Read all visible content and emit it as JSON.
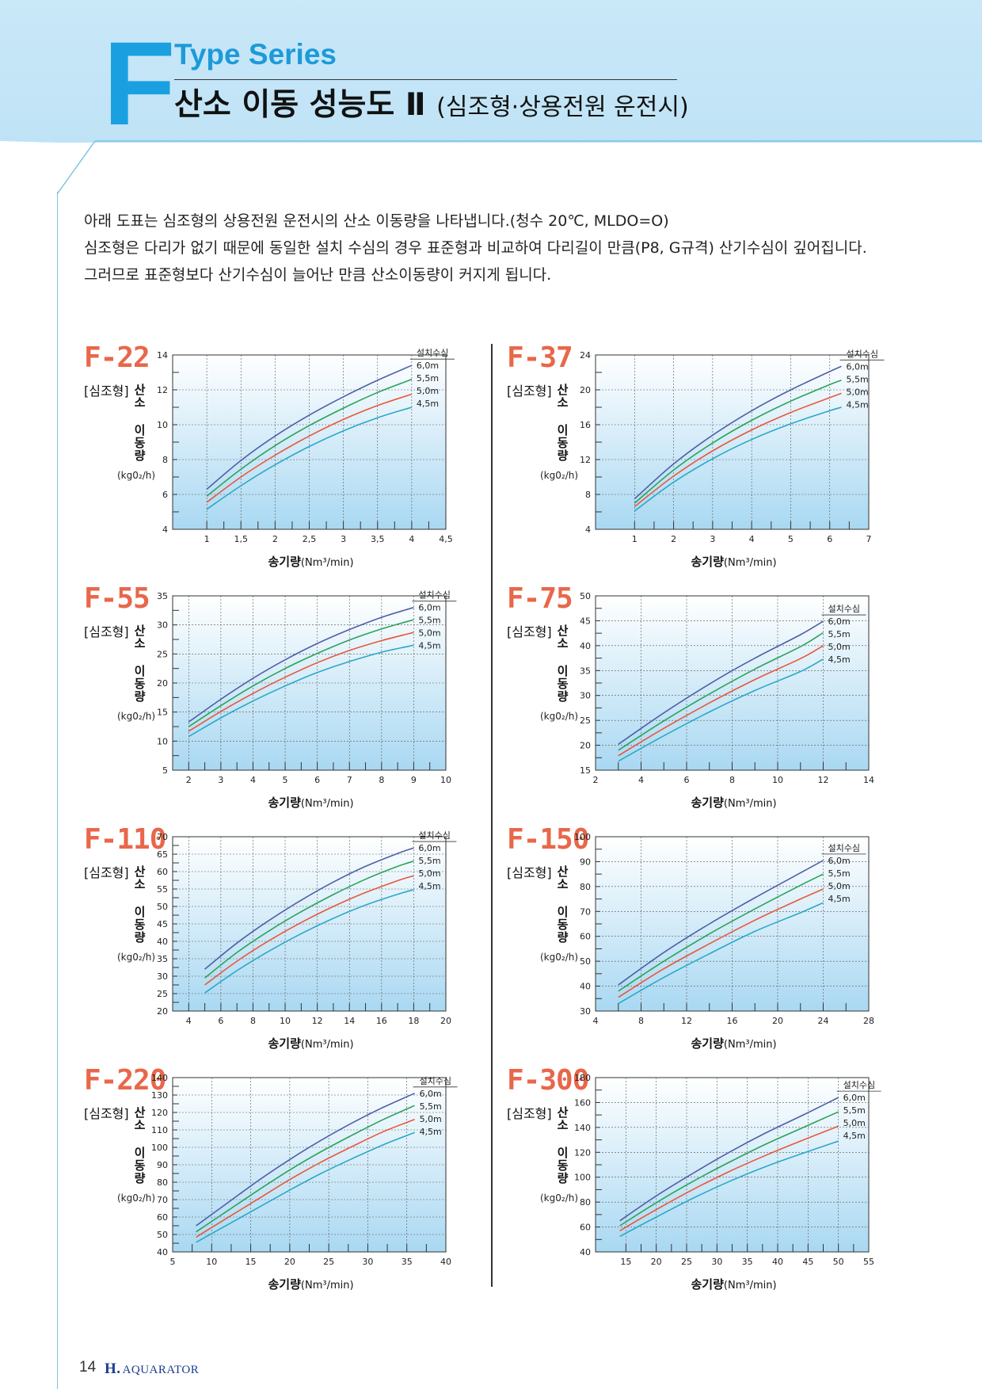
{
  "header": {
    "letter": "F",
    "series": "Type Series",
    "title": "산소 이동 성능도 Ⅱ",
    "subtitle": "(심조형·상용전원 운전시)"
  },
  "intro": [
    "아래 도표는 심조형의 상용전원 운전시의 산소 이동량을 나타냅니다.(청수 20℃, MLDO=O)",
    "심조형은 다리가 없기 때문에 동일한 설치 수심의 경우 표준형과 비교하여 다리길이 만큼(P8, G규격) 산기수심이 깊어집니다.",
    "그러므로 표준형보다 산기수심이 늘어난 만큼 산소이동량이 커지게 됩니다."
  ],
  "common": {
    "type_label": "[심조형]",
    "ylabel": "산소 이동량",
    "yunit": "(kg0₂/h)",
    "xlabel": "송기량",
    "xunit": "(Nm³/min)",
    "legend_title": "설치수심",
    "series_names": [
      "6,0m",
      "5,5m",
      "5,0m",
      "4,5m"
    ],
    "series_colors": [
      "#4f5fa8",
      "#2aa35a",
      "#e8583a",
      "#29a9c6"
    ]
  },
  "footer": {
    "page": "14",
    "brand_mark": "H.",
    "brand": "AQUARATOR"
  },
  "chart_data": [
    {
      "type": "line",
      "title": "F-22",
      "xlabel": "송기량(Nm³/min)",
      "ylabel": "산소 이동량",
      "xlim": [
        0.5,
        4.5
      ],
      "ylim": [
        4,
        14
      ],
      "grid": true,
      "legend": "top-right",
      "xticks": [
        "1",
        "1,5",
        "2",
        "2,5",
        "3",
        "3,5",
        "4",
        "4,5"
      ],
      "yticks": [
        "4",
        "6",
        "8",
        "10",
        "12",
        "14"
      ],
      "x": [
        1,
        1.5,
        2,
        2.5,
        3,
        3.5,
        4
      ],
      "series": [
        {
          "name": "6,0m",
          "values": [
            6.3,
            7.95,
            9.35,
            10.55,
            11.6,
            12.55,
            13.4
          ]
        },
        {
          "name": "5,5m",
          "values": [
            5.9,
            7.45,
            8.8,
            9.95,
            10.95,
            11.85,
            12.6
          ]
        },
        {
          "name": "5,0m",
          "values": [
            5.55,
            7.0,
            8.25,
            9.35,
            10.3,
            11.1,
            11.75
          ]
        },
        {
          "name": "4,5m",
          "values": [
            5.15,
            6.5,
            7.7,
            8.75,
            9.65,
            10.4,
            11.0
          ]
        }
      ]
    },
    {
      "type": "line",
      "title": "F-37",
      "xlabel": "송기량(Nm³/min)",
      "ylabel": "산소 이동량",
      "xlim": [
        0,
        7
      ],
      "ylim": [
        4,
        24
      ],
      "grid": true,
      "legend": "top-right",
      "xticks": [
        "1",
        "2",
        "3",
        "4",
        "5",
        "6",
        "7"
      ],
      "yticks": [
        "4",
        "8",
        "12",
        "16",
        "20",
        "24"
      ],
      "x": [
        1,
        2,
        3,
        4,
        5,
        6,
        6.3
      ],
      "series": [
        {
          "name": "6,0m",
          "values": [
            7.5,
            11.5,
            14.8,
            17.6,
            20.0,
            22.1,
            22.7
          ]
        },
        {
          "name": "5,5m",
          "values": [
            7.0,
            10.8,
            13.9,
            16.5,
            18.7,
            20.6,
            21.1
          ]
        },
        {
          "name": "5,0m",
          "values": [
            6.6,
            10.1,
            13.0,
            15.4,
            17.4,
            19.1,
            19.6
          ]
        },
        {
          "name": "4,5m",
          "values": [
            6.1,
            9.4,
            12.1,
            14.3,
            16.1,
            17.6,
            18.0
          ]
        }
      ]
    },
    {
      "type": "line",
      "title": "F-55",
      "xlabel": "송기량(Nm³/min)",
      "ylabel": "산소 이동량",
      "xlim": [
        1.5,
        10
      ],
      "ylim": [
        5,
        35
      ],
      "grid": true,
      "legend": "top-right",
      "xticks": [
        "2",
        "3",
        "4",
        "5",
        "6",
        "7",
        "8",
        "9",
        "10"
      ],
      "yticks": [
        "5",
        "10",
        "15",
        "20",
        "25",
        "30",
        "35"
      ],
      "x": [
        2,
        3,
        4,
        5,
        6,
        7,
        8,
        9
      ],
      "series": [
        {
          "name": "6,0m",
          "values": [
            13.3,
            17.2,
            20.8,
            24.0,
            26.8,
            29.2,
            31.3,
            33.0
          ]
        },
        {
          "name": "5,5m",
          "values": [
            12.5,
            16.1,
            19.5,
            22.5,
            25.1,
            27.4,
            29.3,
            30.9
          ]
        },
        {
          "name": "5,0m",
          "values": [
            11.7,
            15.1,
            18.2,
            21.0,
            23.5,
            25.6,
            27.3,
            28.7
          ]
        },
        {
          "name": "4,5m",
          "values": [
            10.8,
            14.0,
            16.9,
            19.5,
            21.8,
            23.7,
            25.3,
            26.5
          ]
        }
      ]
    },
    {
      "type": "line",
      "title": "F-75",
      "xlabel": "송기량(Nm³/min)",
      "ylabel": "산소 이동량",
      "xlim": [
        2,
        14
      ],
      "ylim": [
        15,
        50
      ],
      "grid": true,
      "legend": "top-right",
      "xticks": [
        "2",
        "4",
        "6",
        "8",
        "10",
        "12",
        "14"
      ],
      "yticks": [
        "15",
        "20",
        "25",
        "30",
        "35",
        "40",
        "45",
        "50"
      ],
      "x": [
        3,
        5,
        7,
        9,
        11,
        12
      ],
      "series": [
        {
          "name": "6,0m",
          "values": [
            20.2,
            26.5,
            32.3,
            37.5,
            42.2,
            44.9
          ]
        },
        {
          "name": "5,5m",
          "values": [
            19.0,
            24.9,
            30.3,
            35.3,
            39.8,
            42.6
          ]
        },
        {
          "name": "5,0m",
          "values": [
            17.9,
            23.4,
            28.5,
            33.2,
            37.4,
            40.0
          ]
        },
        {
          "name": "4,5m",
          "values": [
            16.8,
            21.9,
            26.7,
            31.0,
            34.8,
            37.3
          ]
        }
      ]
    },
    {
      "type": "line",
      "title": "F-110",
      "xlabel": "송기량(Nm³/min)",
      "ylabel": "산소 이동량",
      "xlim": [
        3,
        20
      ],
      "ylim": [
        20,
        70
      ],
      "grid": true,
      "legend": "top-right",
      "xticks": [
        "4",
        "6",
        "8",
        "10",
        "12",
        "14",
        "16",
        "18",
        "20"
      ],
      "yticks": [
        "20",
        "25",
        "30",
        "35",
        "40",
        "45",
        "50",
        "55",
        "60",
        "65",
        "70"
      ],
      "x": [
        5,
        7,
        9,
        11,
        13,
        15,
        17,
        18
      ],
      "series": [
        {
          "name": "6,0m",
          "values": [
            32.0,
            39.5,
            46.0,
            51.8,
            57.0,
            61.5,
            65.2,
            66.8
          ]
        },
        {
          "name": "5,5m",
          "values": [
            29.5,
            36.8,
            43.0,
            48.5,
            53.4,
            57.8,
            61.5,
            63.0
          ]
        },
        {
          "name": "5,0m",
          "values": [
            27.5,
            34.3,
            40.2,
            45.4,
            50.0,
            54.0,
            57.4,
            58.8
          ]
        },
        {
          "name": "4,5m",
          "values": [
            25.2,
            31.6,
            37.2,
            42.2,
            46.6,
            50.4,
            53.5,
            54.8
          ]
        }
      ]
    },
    {
      "type": "line",
      "title": "F-150",
      "xlabel": "송기량(Nm³/min)",
      "ylabel": "산소 이동량",
      "xlim": [
        4,
        28
      ],
      "ylim": [
        30,
        100
      ],
      "grid": true,
      "legend": "top-right",
      "xticks": [
        "4",
        "8",
        "12",
        "16",
        "20",
        "24",
        "28"
      ],
      "yticks": [
        "30",
        "40",
        "50",
        "60",
        "70",
        "80",
        "90",
        "100"
      ],
      "x": [
        6,
        10,
        14,
        18,
        22,
        24
      ],
      "series": [
        {
          "name": "6,0m",
          "values": [
            40.5,
            53.5,
            65.0,
            75.5,
            85.5,
            90.5
          ]
        },
        {
          "name": "5,5m",
          "values": [
            38.0,
            50.0,
            61.0,
            71.0,
            80.5,
            85.0
          ]
        },
        {
          "name": "5,0m",
          "values": [
            35.5,
            47.0,
            57.0,
            66.5,
            75.0,
            79.0
          ]
        },
        {
          "name": "4,5m",
          "values": [
            33.0,
            43.5,
            53.0,
            62.0,
            69.5,
            73.5
          ]
        }
      ]
    },
    {
      "type": "line",
      "title": "F-220",
      "xlabel": "송기량(Nm³/min)",
      "ylabel": "산소 이동량",
      "xlim": [
        5,
        40
      ],
      "ylim": [
        40,
        140
      ],
      "grid": true,
      "legend": "top-right",
      "xticks": [
        "5",
        "10",
        "15",
        "20",
        "25",
        "30",
        "35",
        "40"
      ],
      "yticks": [
        "40",
        "50",
        "60",
        "70",
        "80",
        "90",
        "100",
        "110",
        "120",
        "130",
        "140"
      ],
      "x": [
        8,
        12,
        16,
        20,
        24,
        28,
        32,
        36
      ],
      "series": [
        {
          "name": "6,0m",
          "values": [
            55.0,
            68.0,
            81.0,
            93.0,
            104.0,
            114.0,
            123.0,
            131.0
          ]
        },
        {
          "name": "5,5m",
          "values": [
            51.5,
            63.5,
            75.5,
            87.0,
            97.5,
            107.0,
            116.0,
            124.0
          ]
        },
        {
          "name": "5,0m",
          "values": [
            48.5,
            59.5,
            70.5,
            81.5,
            91.5,
            100.5,
            109.0,
            116.0
          ]
        },
        {
          "name": "4,5m",
          "values": [
            45.5,
            55.5,
            65.5,
            75.5,
            85.0,
            93.5,
            101.5,
            108.5
          ]
        }
      ]
    },
    {
      "type": "line",
      "title": "F-300",
      "xlabel": "송기량(Nm³/min)",
      "ylabel": "산소 이동량",
      "xlim": [
        10,
        55
      ],
      "ylim": [
        40,
        180
      ],
      "grid": true,
      "legend": "top-right",
      "xticks": [
        "15",
        "20",
        "25",
        "30",
        "35",
        "40",
        "45",
        "50",
        "55"
      ],
      "yticks": [
        "40",
        "60",
        "80",
        "100",
        "120",
        "140",
        "160",
        "180"
      ],
      "x": [
        14,
        20,
        26,
        32,
        38,
        44,
        50
      ],
      "series": [
        {
          "name": "6,0m",
          "values": [
            65.0,
            85.0,
            103.0,
            120.0,
            135.5,
            149.5,
            164.0
          ]
        },
        {
          "name": "5,5m",
          "values": [
            61.0,
            79.5,
            96.5,
            112.0,
            126.5,
            139.5,
            152.5
          ]
        },
        {
          "name": "5,0m",
          "values": [
            57.0,
            74.0,
            90.0,
            104.5,
            117.5,
            129.5,
            141.0
          ]
        },
        {
          "name": "4,5m",
          "values": [
            52.5,
            68.0,
            83.0,
            96.5,
            108.5,
            119.0,
            129.0
          ]
        }
      ]
    }
  ]
}
